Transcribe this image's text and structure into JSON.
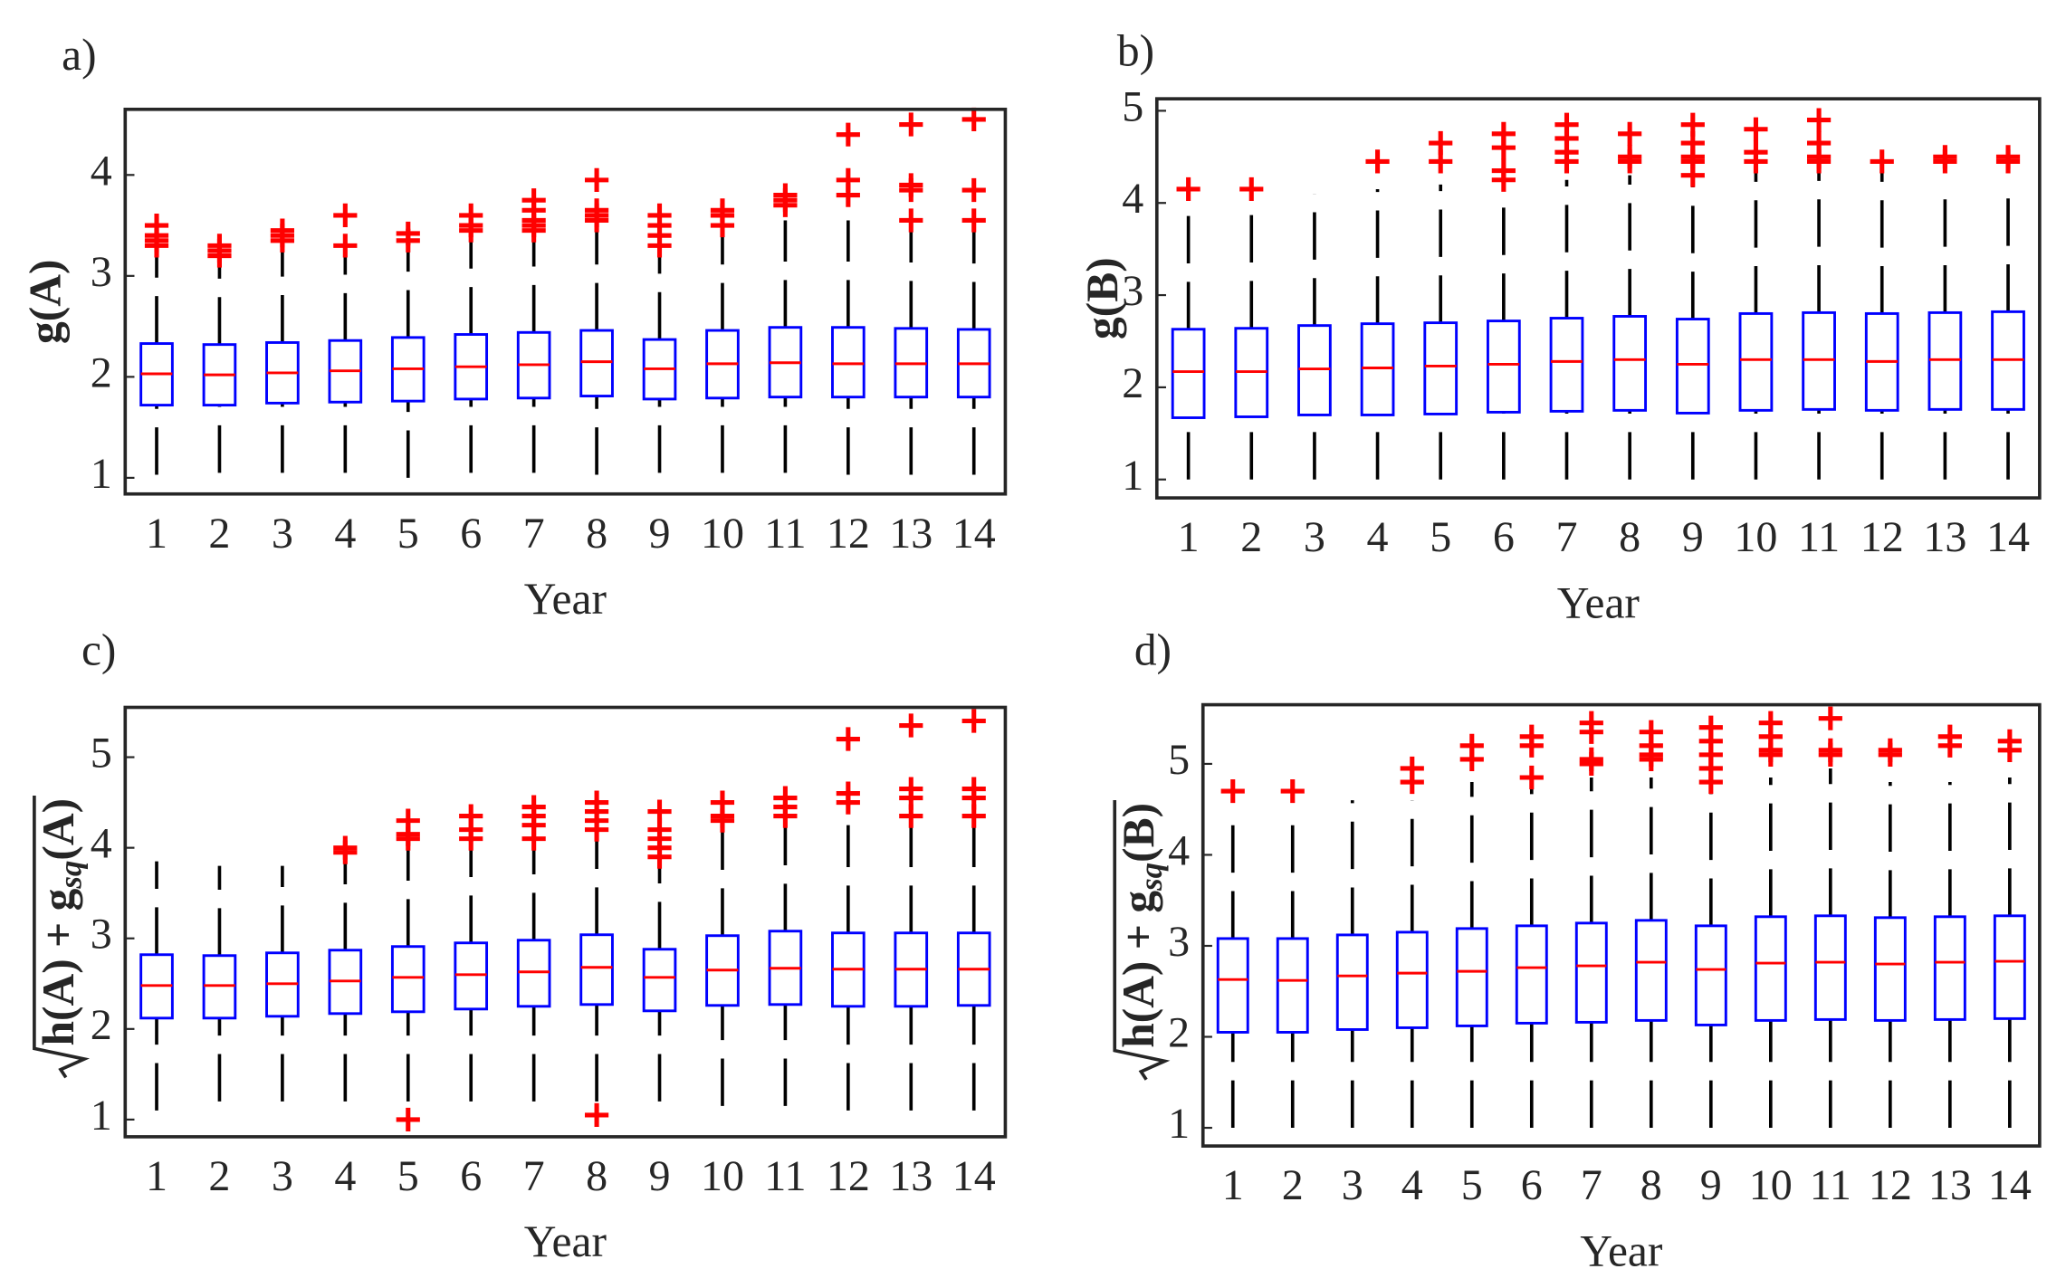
{
  "chart_data": [
    {
      "type": "box",
      "panel_label": "a)",
      "ylabel": "g(A)",
      "xlabel": "Year",
      "categories": [
        "1",
        "2",
        "3",
        "4",
        "5",
        "6",
        "7",
        "8",
        "9",
        "10",
        "11",
        "12",
        "13",
        "14"
      ],
      "ylim": [
        0.84,
        4.65
      ],
      "yticks": [
        1,
        2,
        3,
        4
      ],
      "box_color": "#0000ff",
      "median_color": "#ff0000",
      "whisker_color": "#000000",
      "flier_color": "#ff0000",
      "whislo": [
        1.03,
        1.05,
        1.05,
        1.05,
        1.0,
        1.05,
        1.05,
        1.03,
        1.05,
        1.05,
        1.05,
        1.03,
        1.03,
        1.03
      ],
      "q1": [
        1.72,
        1.72,
        1.74,
        1.75,
        1.76,
        1.78,
        1.79,
        1.81,
        1.78,
        1.79,
        1.8,
        1.8,
        1.8,
        1.8
      ],
      "med": [
        2.03,
        2.02,
        2.04,
        2.06,
        2.08,
        2.1,
        2.12,
        2.15,
        2.08,
        2.13,
        2.14,
        2.13,
        2.13,
        2.13
      ],
      "q3": [
        2.33,
        2.32,
        2.34,
        2.36,
        2.39,
        2.42,
        2.44,
        2.46,
        2.37,
        2.46,
        2.49,
        2.49,
        2.48,
        2.47
      ],
      "whishi": [
        3.25,
        3.2,
        3.3,
        3.3,
        3.3,
        3.4,
        3.4,
        3.5,
        3.35,
        3.45,
        3.55,
        3.55,
        3.55,
        3.55
      ],
      "fliers": [
        [
          3.3,
          3.35,
          3.4,
          3.5
        ],
        [
          3.2,
          3.25,
          3.3
        ],
        [
          3.35,
          3.4,
          3.45
        ],
        [
          3.3,
          3.6
        ],
        [
          3.35,
          3.42
        ],
        [
          3.45,
          3.5,
          3.6
        ],
        [
          3.45,
          3.5,
          3.55,
          3.65,
          3.75
        ],
        [
          3.55,
          3.6,
          3.65,
          3.95
        ],
        [
          3.3,
          3.4,
          3.5,
          3.6
        ],
        [
          3.5,
          3.6,
          3.65
        ],
        [
          3.7,
          3.75,
          3.8
        ],
        [
          3.8,
          3.95,
          4.4
        ],
        [
          3.55,
          3.85,
          3.9,
          4.5
        ],
        [
          3.55,
          3.85,
          4.55
        ]
      ]
    },
    {
      "type": "box",
      "panel_label": "b)",
      "ylabel": "g(B)",
      "xlabel": "Year",
      "categories": [
        "1",
        "2",
        "3",
        "4",
        "5",
        "6",
        "7",
        "8",
        "9",
        "10",
        "11",
        "12",
        "13",
        "14"
      ],
      "ylim": [
        0.8,
        5.13
      ],
      "yticks": [
        1,
        2,
        3,
        4,
        5
      ],
      "box_color": "#0000ff",
      "median_color": "#ff0000",
      "whisker_color": "#000000",
      "flier_color": "#ff0000",
      "whislo": [
        1,
        1,
        1,
        1,
        1,
        1,
        1,
        1,
        1,
        1,
        1,
        1,
        1,
        1
      ],
      "q1": [
        1.67,
        1.68,
        1.7,
        1.7,
        1.71,
        1.73,
        1.74,
        1.75,
        1.72,
        1.75,
        1.76,
        1.75,
        1.76,
        1.76
      ],
      "med": [
        2.17,
        2.17,
        2.2,
        2.21,
        2.23,
        2.25,
        2.28,
        2.3,
        2.25,
        2.3,
        2.3,
        2.28,
        2.3,
        2.3
      ],
      "q3": [
        2.63,
        2.64,
        2.67,
        2.69,
        2.7,
        2.72,
        2.75,
        2.77,
        2.74,
        2.8,
        2.81,
        2.8,
        2.81,
        2.82
      ],
      "whishi": [
        4.1,
        4.05,
        4.1,
        4.15,
        4.2,
        4.2,
        4.25,
        4.3,
        4.25,
        4.35,
        4.35,
        4.35,
        4.1,
        4.15
      ],
      "fliers": [
        [
          4.15
        ],
        [
          4.15
        ],
        [],
        [
          4.45
        ],
        [
          4.45,
          4.65
        ],
        [
          4.25,
          4.35,
          4.6,
          4.75
        ],
        [
          4.45,
          4.55,
          4.7,
          4.85
        ],
        [
          4.45,
          4.5,
          4.75
        ],
        [
          4.3,
          4.45,
          4.5,
          4.65,
          4.85
        ],
        [
          4.45,
          4.55,
          4.8
        ],
        [
          4.45,
          4.5,
          4.65,
          4.9
        ],
        [
          4.45
        ],
        [
          4.45,
          4.5
        ],
        [
          4.45,
          4.5
        ]
      ]
    },
    {
      "type": "box",
      "panel_label": "c)",
      "ylabel": {
        "radicand": "h(A) + g",
        "subscript": "sq",
        "suffix": "(A)"
      },
      "xlabel": "Year",
      "categories": [
        "1",
        "2",
        "3",
        "4",
        "5",
        "6",
        "7",
        "8",
        "9",
        "10",
        "11",
        "12",
        "13",
        "14"
      ],
      "ylim": [
        0.81,
        5.55
      ],
      "yticks": [
        1,
        2,
        3,
        4,
        5
      ],
      "box_color": "#0000ff",
      "median_color": "#ff0000",
      "whisker_color": "#000000",
      "flier_color": "#ff0000",
      "whislo": [
        1.1,
        1.2,
        1.2,
        1.2,
        1.2,
        1.2,
        1.2,
        1.2,
        1.2,
        1.15,
        1.15,
        1.1,
        1.1,
        1.1
      ],
      "q1": [
        2.12,
        2.12,
        2.14,
        2.17,
        2.19,
        2.22,
        2.25,
        2.27,
        2.2,
        2.26,
        2.27,
        2.25,
        2.25,
        2.26
      ],
      "med": [
        2.48,
        2.48,
        2.5,
        2.53,
        2.57,
        2.6,
        2.63,
        2.68,
        2.57,
        2.65,
        2.67,
        2.66,
        2.66,
        2.66
      ],
      "q3": [
        2.82,
        2.81,
        2.84,
        2.87,
        2.91,
        2.95,
        2.98,
        3.04,
        2.88,
        3.03,
        3.08,
        3.06,
        3.06,
        3.06
      ],
      "whishi": [
        3.85,
        3.8,
        3.8,
        3.85,
        4.0,
        4.05,
        4.1,
        4.15,
        4.0,
        4.2,
        4.25,
        4.25,
        4.25,
        4.25
      ],
      "fliers": [
        [],
        [],
        [],
        [
          3.95,
          4.0
        ],
        [
          1.0,
          4.1,
          4.15,
          4.3
        ],
        [
          4.1,
          4.2,
          4.35
        ],
        [
          4.1,
          4.25,
          4.35,
          4.45
        ],
        [
          1.05,
          4.2,
          4.3,
          4.4,
          4.5
        ],
        [
          3.9,
          4.0,
          4.1,
          4.2,
          4.4
        ],
        [
          4.3,
          4.35,
          4.5
        ],
        [
          4.35,
          4.45,
          4.55
        ],
        [
          4.5,
          4.6,
          5.2
        ],
        [
          4.35,
          4.55,
          4.65,
          5.35
        ],
        [
          4.35,
          4.55,
          4.65,
          5.4
        ]
      ]
    },
    {
      "type": "box",
      "panel_label": "d)",
      "ylabel": {
        "radicand": "h(A) + g",
        "subscript": "sq",
        "suffix": "(B)"
      },
      "xlabel": "Year",
      "categories": [
        "1",
        "2",
        "3",
        "4",
        "5",
        "6",
        "7",
        "8",
        "9",
        "10",
        "11",
        "12",
        "13",
        "14"
      ],
      "ylim": [
        0.8,
        5.65
      ],
      "yticks": [
        1,
        2,
        3,
        4,
        5
      ],
      "box_color": "#0000ff",
      "median_color": "#ff0000",
      "whisker_color": "#000000",
      "flier_color": "#ff0000",
      "whislo": [
        1,
        1,
        1,
        1,
        1,
        1,
        1,
        1,
        1,
        1,
        1,
        1,
        1,
        1
      ],
      "q1": [
        2.05,
        2.05,
        2.08,
        2.1,
        2.12,
        2.15,
        2.16,
        2.18,
        2.13,
        2.18,
        2.19,
        2.18,
        2.19,
        2.2
      ],
      "med": [
        2.63,
        2.62,
        2.67,
        2.7,
        2.72,
        2.76,
        2.78,
        2.82,
        2.74,
        2.81,
        2.82,
        2.8,
        2.82,
        2.83
      ],
      "q3": [
        3.08,
        3.08,
        3.12,
        3.15,
        3.19,
        3.22,
        3.25,
        3.28,
        3.22,
        3.32,
        3.33,
        3.31,
        3.32,
        3.33
      ],
      "whishi": [
        4.5,
        4.45,
        4.6,
        4.6,
        4.8,
        4.8,
        4.85,
        4.85,
        4.8,
        4.85,
        4.95,
        4.8,
        4.8,
        4.85
      ],
      "fliers": [
        [
          4.7
        ],
        [
          4.7
        ],
        [],
        [
          4.8,
          4.95
        ],
        [
          5.05,
          5.2
        ],
        [
          4.85,
          5.2,
          5.3
        ],
        [
          5.0,
          5.05,
          5.35,
          5.45
        ],
        [
          5.05,
          5.1,
          5.2,
          5.35
        ],
        [
          4.8,
          4.95,
          5.1,
          5.25,
          5.4
        ],
        [
          5.1,
          5.15,
          5.3,
          5.45
        ],
        [
          5.1,
          5.15,
          5.5
        ],
        [
          5.1,
          5.15
        ],
        [
          5.2,
          5.3
        ],
        [
          5.15,
          5.25
        ]
      ]
    }
  ]
}
